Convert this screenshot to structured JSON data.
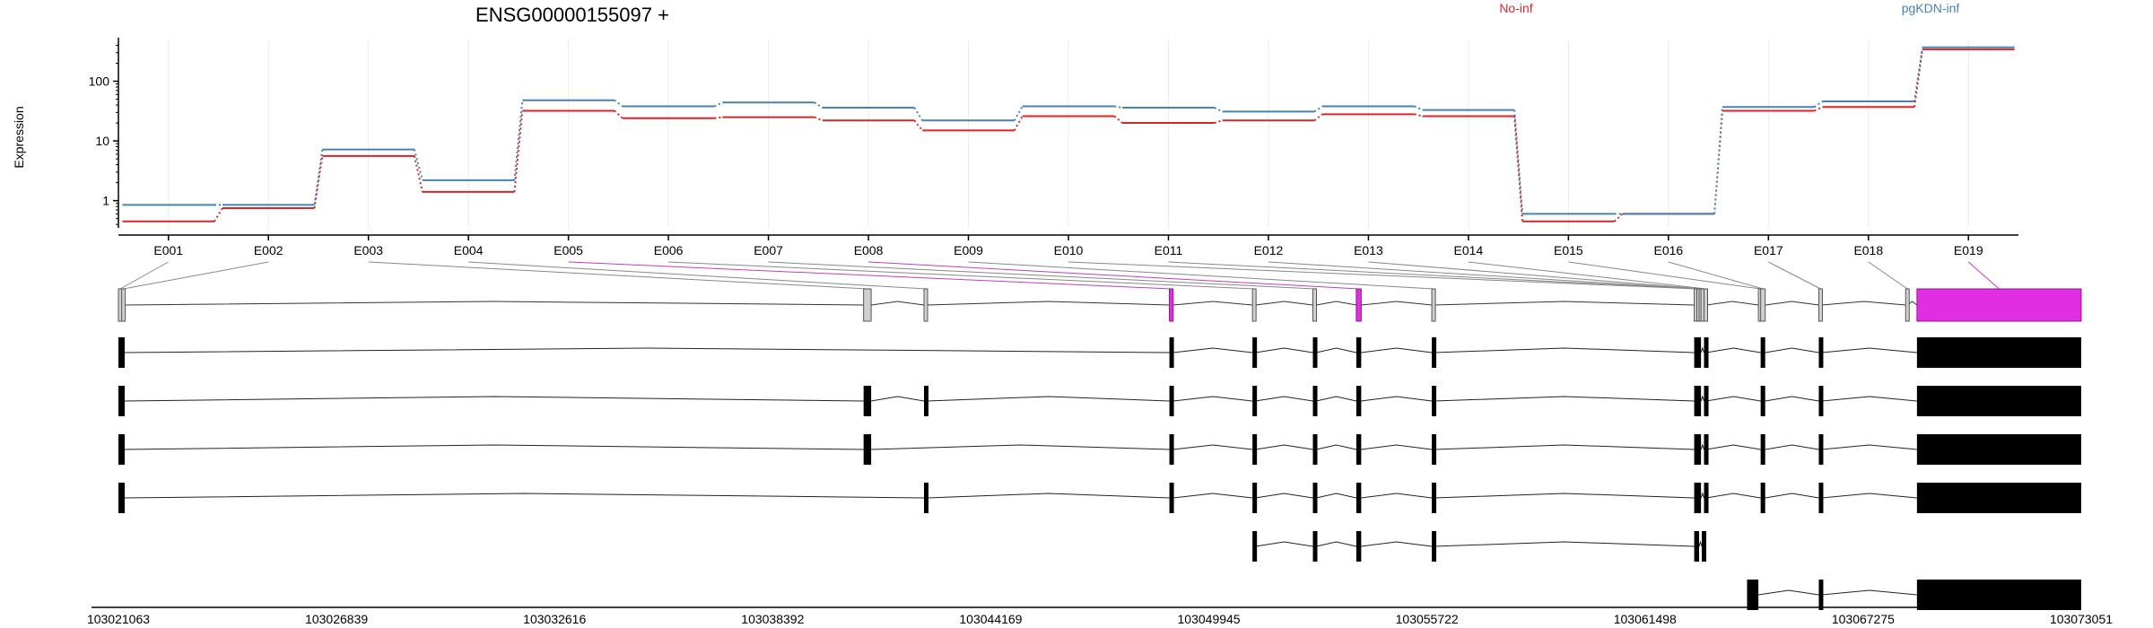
{
  "chart_data": {
    "type": "line",
    "title": "ENSG00000155097 +",
    "ylabel": "Expression",
    "xlabel": "",
    "y_scale": "log",
    "y_ticks": [
      "1",
      "10",
      "100"
    ],
    "categories": [
      "E001",
      "E002",
      "E003",
      "E004",
      "E005",
      "E006",
      "E007",
      "E008",
      "E009",
      "E010",
      "E011",
      "E012",
      "E013",
      "E014",
      "E015",
      "E016",
      "E017",
      "E018",
      "E019"
    ],
    "grid": "vertical",
    "legend": "top, inline above plot",
    "series": [
      {
        "name": "No-inf",
        "color": "#d62728",
        "values": [
          0.45,
          0.75,
          5.6,
          1.4,
          32,
          24,
          25,
          22,
          15,
          26,
          20,
          22,
          28,
          26,
          0.45,
          0.6,
          32,
          37,
          340
        ]
      },
      {
        "name": "pgKDN-inf",
        "color": "#4682b4",
        "values": [
          0.85,
          0.85,
          7.2,
          2.2,
          48,
          38,
          44,
          36,
          22,
          38,
          36,
          31,
          38,
          33,
          0.6,
          0.6,
          37,
          46,
          370
        ]
      }
    ],
    "genomic_axis": {
      "start": 103021063,
      "end": 103073051,
      "tick_labels": [
        "103021063",
        "103026839",
        "103032616",
        "103038392",
        "103044169",
        "103049945",
        "103055722",
        "103061498",
        "103067275",
        "103073051"
      ]
    },
    "exons": [
      {
        "id": "E001",
        "start": 103021063,
        "end": 103021150,
        "highlight": false
      },
      {
        "id": "E002",
        "start": 103021150,
        "end": 103021230,
        "highlight": false
      },
      {
        "id": "E003",
        "start": 103040800,
        "end": 103041000,
        "highlight": false
      },
      {
        "id": "E004",
        "start": 103042400,
        "end": 103042480,
        "highlight": false
      },
      {
        "id": "E005",
        "start": 103048900,
        "end": 103049000,
        "highlight": true
      },
      {
        "id": "E006",
        "start": 103051100,
        "end": 103051180,
        "highlight": false
      },
      {
        "id": "E007",
        "start": 103052700,
        "end": 103052790,
        "highlight": false
      },
      {
        "id": "E008",
        "start": 103053850,
        "end": 103053980,
        "highlight": true
      },
      {
        "id": "E009",
        "start": 103055850,
        "end": 103055910,
        "highlight": false
      },
      {
        "id": "E010",
        "start": 103062800,
        "end": 103062870,
        "highlight": false
      },
      {
        "id": "E011",
        "start": 103062870,
        "end": 103062930,
        "highlight": false
      },
      {
        "id": "E012",
        "start": 103062930,
        "end": 103062980,
        "highlight": false
      },
      {
        "id": "E013",
        "start": 103062980,
        "end": 103063060,
        "highlight": false
      },
      {
        "id": "E014",
        "start": 103063060,
        "end": 103063120,
        "highlight": false
      },
      {
        "id": "E015",
        "start": 103064500,
        "end": 103064560,
        "highlight": false
      },
      {
        "id": "E016",
        "start": 103064560,
        "end": 103064680,
        "highlight": false
      },
      {
        "id": "E017",
        "start": 103066100,
        "end": 103066180,
        "highlight": false
      },
      {
        "id": "E018",
        "start": 103068400,
        "end": 103068450,
        "highlight": false
      },
      {
        "id": "E019",
        "start": 103068700,
        "end": 103073051,
        "highlight": true
      }
    ],
    "transcripts": [
      {
        "blocks": [
          [
            103021063,
            103021230
          ],
          [
            103048900,
            103049000
          ],
          [
            103051100,
            103051180
          ],
          [
            103052700,
            103052790
          ],
          [
            103053850,
            103053980
          ],
          [
            103055850,
            103055910
          ],
          [
            103062800,
            103062980
          ],
          [
            103063060,
            103063120
          ],
          [
            103064560,
            103064680
          ],
          [
            103066100,
            103066180
          ],
          [
            103068700,
            103073051
          ]
        ]
      },
      {
        "blocks": [
          [
            103021063,
            103021230
          ],
          [
            103040800,
            103041000
          ],
          [
            103042400,
            103042480
          ],
          [
            103048900,
            103049000
          ],
          [
            103051100,
            103051180
          ],
          [
            103052700,
            103052790
          ],
          [
            103053850,
            103053980
          ],
          [
            103055850,
            103055910
          ],
          [
            103062800,
            103062980
          ],
          [
            103063060,
            103063120
          ],
          [
            103064560,
            103064680
          ],
          [
            103066100,
            103066180
          ],
          [
            103068700,
            103073051
          ]
        ]
      },
      {
        "blocks": [
          [
            103021063,
            103021230
          ],
          [
            103040800,
            103041000
          ],
          [
            103048900,
            103049000
          ],
          [
            103051100,
            103051180
          ],
          [
            103052700,
            103052790
          ],
          [
            103053850,
            103053980
          ],
          [
            103055850,
            103055910
          ],
          [
            103062800,
            103062980
          ],
          [
            103063060,
            103063120
          ],
          [
            103064560,
            103064680
          ],
          [
            103066100,
            103066180
          ],
          [
            103068700,
            103073051
          ]
        ]
      },
      {
        "blocks": [
          [
            103021063,
            103021230
          ],
          [
            103042400,
            103042480
          ],
          [
            103048900,
            103049000
          ],
          [
            103051100,
            103051180
          ],
          [
            103052700,
            103052790
          ],
          [
            103053850,
            103053980
          ],
          [
            103055850,
            103055910
          ],
          [
            103062800,
            103062980
          ],
          [
            103063060,
            103063120
          ],
          [
            103064560,
            103064680
          ],
          [
            103066100,
            103066180
          ],
          [
            103068700,
            103073051
          ]
        ]
      },
      {
        "blocks": [
          [
            103051100,
            103051180
          ],
          [
            103052700,
            103052790
          ],
          [
            103053850,
            103053980
          ],
          [
            103055850,
            103055910
          ],
          [
            103062800,
            103062930
          ],
          [
            103063000,
            103063120
          ]
        ]
      },
      {
        "blocks": [
          [
            103064200,
            103064500
          ],
          [
            103066100,
            103066180
          ],
          [
            103068700,
            103073051
          ]
        ]
      }
    ]
  }
}
